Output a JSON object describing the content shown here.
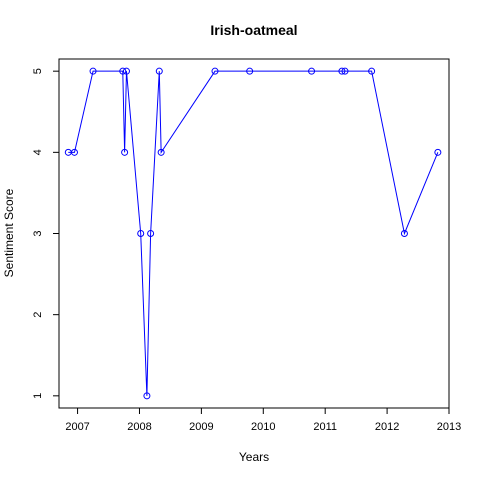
{
  "chart_data": {
    "type": "line",
    "title": "Irish-oatmeal",
    "xlabel": "Years",
    "ylabel": "Sentiment Score",
    "xlim": [
      2006.7,
      2013.0
    ],
    "ylim": [
      0.85,
      5.15
    ],
    "x_ticks": [
      "2007",
      "2008",
      "2009",
      "2010",
      "2011",
      "2012",
      "2013"
    ],
    "y_ticks": [
      "1",
      "2",
      "3",
      "4",
      "5"
    ],
    "grid": false,
    "series_color": "#0000ff",
    "series": [
      {
        "points": [
          {
            "x": 2006.85,
            "y": 4
          },
          {
            "x": 2006.95,
            "y": 4
          },
          {
            "x": 2007.25,
            "y": 5
          },
          {
            "x": 2007.73,
            "y": 5
          },
          {
            "x": 2007.76,
            "y": 4
          },
          {
            "x": 2007.79,
            "y": 5
          },
          {
            "x": 2008.02,
            "y": 3
          },
          {
            "x": 2008.12,
            "y": 1
          },
          {
            "x": 2008.18,
            "y": 3
          },
          {
            "x": 2008.32,
            "y": 5
          },
          {
            "x": 2008.35,
            "y": 4
          },
          {
            "x": 2009.22,
            "y": 5
          },
          {
            "x": 2009.78,
            "y": 5
          },
          {
            "x": 2010.78,
            "y": 5
          },
          {
            "x": 2011.27,
            "y": 5
          },
          {
            "x": 2011.32,
            "y": 5
          },
          {
            "x": 2011.75,
            "y": 5
          },
          {
            "x": 2012.28,
            "y": 3
          },
          {
            "x": 2012.82,
            "y": 4
          }
        ]
      }
    ]
  }
}
